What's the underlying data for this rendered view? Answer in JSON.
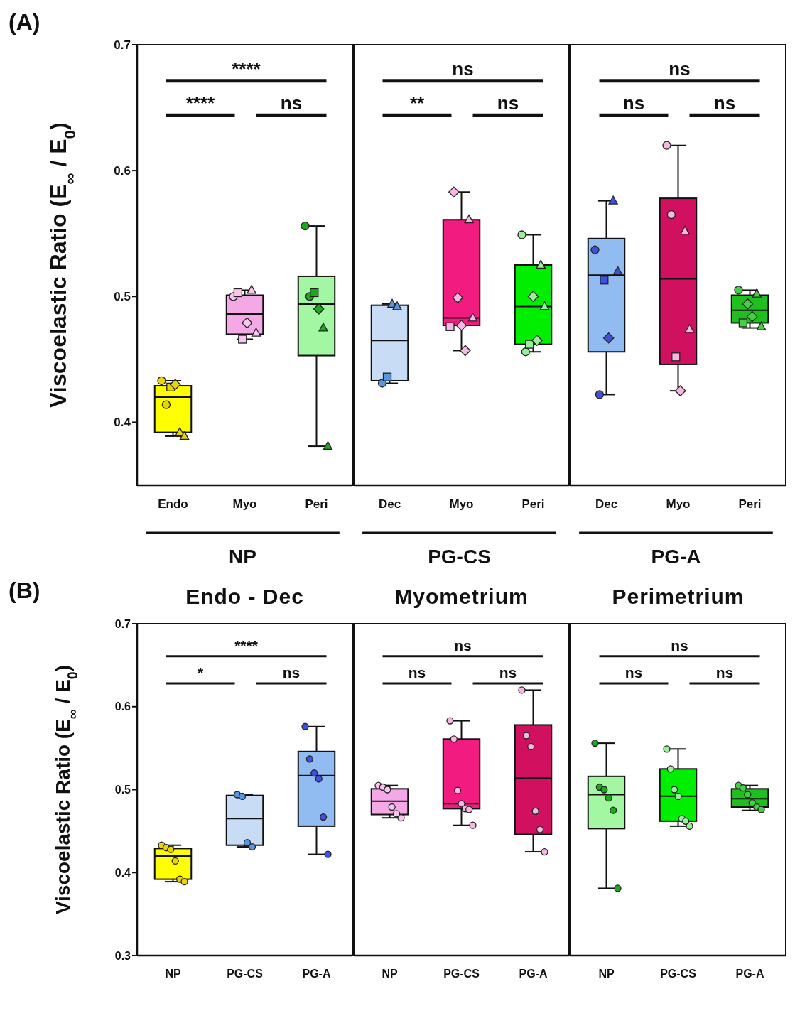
{
  "chart_data": [
    {
      "type": "box",
      "xlabel": "NP",
      "ylabel": "Viscoelastic Ratio (E$_{∞}$ / E$_{0}$)",
      "categories": [
        "Endo",
        "Myo",
        "Peri"
      ],
      "ylim": [
        0.35,
        0.7
      ],
      "yticks": [
        0.4,
        0.5,
        0.6,
        0.7
      ],
      "annotations": [
        "(A)",
        "****",
        "****",
        "ns"
      ],
      "series": [
        {
          "type": "box",
          "colors": [
            "#ffff00",
            "#f5a8e6",
            "#a3f7a3"
          ],
          "boxes": [
            {
              "low": 0.389,
              "q1": 0.392,
              "median": 0.42,
              "q3": 0.429,
              "high": 0.433
            },
            {
              "low": 0.466,
              "q1": 0.47,
              "median": 0.486,
              "q3": 0.501,
              "high": 0.505
            },
            {
              "low": 0.381,
              "q1": 0.453,
              "median": 0.494,
              "q3": 0.516,
              "high": 0.556
            }
          ]
        },
        {
          "type": "scatter",
          "marker": "circle",
          "x": [
            "Endo",
            "Endo",
            "Myo",
            "Peri",
            "Peri"
          ],
          "values": [
            0.433,
            0.414,
            0.5,
            0.556,
            0.5
          ],
          "colors": [
            "#e8d800",
            "#e8d800",
            "#f8c6ee",
            "#1fa81f",
            "#1fa81f"
          ]
        },
        {
          "type": "scatter",
          "marker": "square",
          "x": [
            "Endo",
            "Myo",
            "Myo",
            "Peri"
          ],
          "values": [
            0.428,
            0.503,
            0.466,
            0.503
          ],
          "colors": [
            "#e8d800",
            "#f8c6ee",
            "#f8c6ee",
            "#1fa81f"
          ]
        },
        {
          "type": "scatter",
          "marker": "diamond",
          "x": [
            "Endo",
            "Myo",
            "Peri"
          ],
          "values": [
            0.43,
            0.479,
            0.49
          ],
          "colors": [
            "#e8d800",
            "#f8c6ee",
            "#1fa81f"
          ]
        },
        {
          "type": "scatter",
          "marker": "triangle",
          "x": [
            "Endo",
            "Endo",
            "Myo",
            "Myo",
            "Peri",
            "Peri"
          ],
          "values": [
            0.392,
            0.389,
            0.505,
            0.471,
            0.475,
            0.381
          ],
          "colors": [
            "#e8d800",
            "#e8d800",
            "#f8c6ee",
            "#f8c6ee",
            "#1fa81f",
            "#1fa81f"
          ]
        }
      ]
    },
    {
      "type": "box",
      "xlabel": "PG-CS",
      "categories": [
        "Dec",
        "Myo",
        "Peri"
      ],
      "ylim": [
        0.35,
        0.7
      ],
      "yticks": [
        0.4,
        0.5,
        0.6,
        0.7
      ],
      "tick_labels": "x",
      "annotations": [
        "ns",
        "**",
        "ns"
      ],
      "series": [
        {
          "type": "box",
          "colors": [
            "#c8dcf5",
            "#f21b7f",
            "#00ee00"
          ],
          "boxes": [
            {
              "low": 0.431,
              "q1": 0.433,
              "median": 0.465,
              "q3": 0.493,
              "high": 0.494
            },
            {
              "low": 0.457,
              "q1": 0.477,
              "median": 0.483,
              "q3": 0.561,
              "high": 0.583
            },
            {
              "low": 0.456,
              "q1": 0.462,
              "median": 0.492,
              "q3": 0.525,
              "high": 0.549
            }
          ]
        },
        {
          "type": "scatter",
          "marker": "circle",
          "x": [
            "Dec",
            "Peri",
            "Peri"
          ],
          "values": [
            0.431,
            0.549,
            0.456
          ],
          "colors": [
            "#5a96e0",
            "#9aef9a",
            "#9aef9a"
          ]
        },
        {
          "type": "scatter",
          "marker": "square",
          "x": [
            "Dec",
            "Myo",
            "Peri"
          ],
          "values": [
            0.436,
            0.476,
            0.462
          ],
          "colors": [
            "#5a96e0",
            "#f5b8e4",
            "#9aef9a"
          ]
        },
        {
          "type": "scatter",
          "marker": "diamond",
          "x": [
            "Myo",
            "Myo",
            "Myo",
            "Myo",
            "Peri",
            "Peri"
          ],
          "values": [
            0.583,
            0.499,
            0.477,
            0.457,
            0.5,
            0.465
          ],
          "colors": [
            "#f5b8e4",
            "#f5b8e4",
            "#f5b8e4",
            "#f5b8e4",
            "#9aef9a",
            "#9aef9a"
          ]
        },
        {
          "type": "scatter",
          "marker": "triangle",
          "x": [
            "Dec",
            "Dec",
            "Myo",
            "Myo",
            "Peri",
            "Peri"
          ],
          "values": [
            0.494,
            0.492,
            0.561,
            0.483,
            0.525,
            0.492
          ],
          "colors": [
            "#5a96e0",
            "#5a96e0",
            "#f5b8e4",
            "#f5b8e4",
            "#9aef9a",
            "#9aef9a"
          ]
        }
      ]
    },
    {
      "type": "box",
      "xlabel": "PG-A",
      "categories": [
        "Dec",
        "Myo",
        "Peri"
      ],
      "ylim": [
        0.35,
        0.7
      ],
      "yticks": [
        0.4,
        0.5,
        0.6,
        0.7
      ],
      "tick_labels": "x",
      "annotations": [
        "ns",
        "ns",
        "ns"
      ],
      "series": [
        {
          "type": "box",
          "colors": [
            "#90bcf2",
            "#d1105f",
            "#1fbf1f"
          ],
          "boxes": [
            {
              "low": 0.422,
              "q1": 0.456,
              "median": 0.517,
              "q3": 0.546,
              "high": 0.576
            },
            {
              "low": 0.425,
              "q1": 0.446,
              "median": 0.514,
              "q3": 0.578,
              "high": 0.62
            },
            {
              "low": 0.475,
              "q1": 0.479,
              "median": 0.489,
              "q3": 0.501,
              "high": 0.505
            }
          ]
        },
        {
          "type": "scatter",
          "marker": "circle",
          "x": [
            "Dec",
            "Dec",
            "Myo",
            "Myo",
            "Peri"
          ],
          "values": [
            0.537,
            0.422,
            0.62,
            0.565,
            0.505
          ],
          "colors": [
            "#3f4fe0",
            "#3f4fe0",
            "#f5b8e4",
            "#f5b8e4",
            "#44d044"
          ]
        },
        {
          "type": "scatter",
          "marker": "square",
          "x": [
            "Dec",
            "Myo",
            "Peri"
          ],
          "values": [
            0.513,
            0.452,
            0.479
          ],
          "colors": [
            "#3f4fe0",
            "#f5b8e4",
            "#44d044"
          ]
        },
        {
          "type": "scatter",
          "marker": "diamond",
          "x": [
            "Dec",
            "Myo",
            "Peri",
            "Peri"
          ],
          "values": [
            0.467,
            0.425,
            0.494,
            0.484
          ],
          "colors": [
            "#3f4fe0",
            "#f5b8e4",
            "#44d044",
            "#44d044"
          ]
        },
        {
          "type": "scatter",
          "marker": "triangle",
          "x": [
            "Dec",
            "Dec",
            "Myo",
            "Myo",
            "Peri",
            "Peri"
          ],
          "values": [
            0.576,
            0.52,
            0.552,
            0.474,
            0.502,
            0.476
          ],
          "colors": [
            "#3f4fe0",
            "#3f4fe0",
            "#f5b8e4",
            "#f5b8e4",
            "#44d044",
            "#44d044"
          ]
        }
      ]
    },
    {
      "type": "box",
      "title": "Endo - Dec",
      "ylabel": "Viscoelastic Ratio (E$_{∞}$ / E$_{0}$)",
      "categories": [
        "NP",
        "PG-CS",
        "PG-A"
      ],
      "ylim": [
        0.3,
        0.7
      ],
      "yticks": [
        0.3,
        0.4,
        0.5,
        0.6,
        0.7
      ],
      "annotations": [
        "(B)",
        "****",
        "*",
        "ns"
      ],
      "series": [
        {
          "type": "box",
          "colors": [
            "#ffff00",
            "#c8dcf5",
            "#90bcf2"
          ],
          "boxes": [
            {
              "low": 0.389,
              "q1": 0.392,
              "median": 0.42,
              "q3": 0.429,
              "high": 0.433
            },
            {
              "low": 0.431,
              "q1": 0.433,
              "median": 0.465,
              "q3": 0.493,
              "high": 0.494
            },
            {
              "low": 0.422,
              "q1": 0.456,
              "median": 0.517,
              "q3": 0.546,
              "high": 0.576
            }
          ]
        },
        {
          "type": "scatter",
          "marker": "circle",
          "x": [
            "NP",
            "NP",
            "NP",
            "NP",
            "NP",
            "NP",
            "PG-CS",
            "PG-CS",
            "PG-CS",
            "PG-CS",
            "PG-A",
            "PG-A",
            "PG-A",
            "PG-A",
            "PG-A",
            "PG-A"
          ],
          "values": [
            0.433,
            0.43,
            0.428,
            0.414,
            0.392,
            0.389,
            0.494,
            0.492,
            0.436,
            0.431,
            0.576,
            0.537,
            0.52,
            0.513,
            0.467,
            0.422
          ],
          "colors": [
            "#e8d800",
            "#e8d800",
            "#e8d800",
            "#e8d800",
            "#e8d800",
            "#e8d800",
            "#5a96e0",
            "#5a96e0",
            "#5a96e0",
            "#5a96e0",
            "#3f4fe0",
            "#3f4fe0",
            "#3f4fe0",
            "#3f4fe0",
            "#3f4fe0",
            "#3f4fe0"
          ]
        }
      ]
    },
    {
      "type": "box",
      "title": "Myometrium",
      "categories": [
        "NP",
        "PG-CS",
        "PG-A"
      ],
      "ylim": [
        0.3,
        0.7
      ],
      "yticks": [
        0.3,
        0.4,
        0.5,
        0.6,
        0.7
      ],
      "tick_labels": "x",
      "annotations": [
        "ns",
        "ns",
        "ns"
      ],
      "series": [
        {
          "type": "box",
          "colors": [
            "#f5a8e6",
            "#f21b7f",
            "#d1105f"
          ],
          "boxes": [
            {
              "low": 0.466,
              "q1": 0.47,
              "median": 0.486,
              "q3": 0.501,
              "high": 0.505
            },
            {
              "low": 0.457,
              "q1": 0.477,
              "median": 0.483,
              "q3": 0.561,
              "high": 0.583
            },
            {
              "low": 0.425,
              "q1": 0.446,
              "median": 0.514,
              "q3": 0.578,
              "high": 0.62
            }
          ]
        },
        {
          "type": "scatter",
          "marker": "circle",
          "x": [
            "NP",
            "NP",
            "NP",
            "NP",
            "NP",
            "NP",
            "PG-CS",
            "PG-CS",
            "PG-CS",
            "PG-CS",
            "PG-CS",
            "PG-CS",
            "PG-CS",
            "PG-A",
            "PG-A",
            "PG-A",
            "PG-A",
            "PG-A",
            "PG-A"
          ],
          "values": [
            0.505,
            0.503,
            0.5,
            0.479,
            0.471,
            0.466,
            0.583,
            0.561,
            0.499,
            0.483,
            0.477,
            0.476,
            0.457,
            0.62,
            0.565,
            0.552,
            0.474,
            0.452,
            0.425
          ],
          "colors": [
            "#f8c6ee",
            "#f8c6ee",
            "#f8c6ee",
            "#f8c6ee",
            "#f8c6ee",
            "#f8c6ee",
            "#f5b8e4",
            "#f5b8e4",
            "#f5b8e4",
            "#f5b8e4",
            "#f5b8e4",
            "#f5b8e4",
            "#f5b8e4",
            "#f5b8e4",
            "#f5b8e4",
            "#f5b8e4",
            "#f5b8e4",
            "#f5b8e4",
            "#f5b8e4"
          ]
        }
      ]
    },
    {
      "type": "box",
      "title": "Perimetrium",
      "categories": [
        "NP",
        "PG-CS",
        "PG-A"
      ],
      "ylim": [
        0.3,
        0.7
      ],
      "yticks": [
        0.3,
        0.4,
        0.5,
        0.6,
        0.7
      ],
      "tick_labels": "x",
      "annotations": [
        "ns",
        "ns",
        "ns"
      ],
      "series": [
        {
          "type": "box",
          "colors": [
            "#a3f7a3",
            "#00ee00",
            "#1fbf1f"
          ],
          "boxes": [
            {
              "low": 0.381,
              "q1": 0.453,
              "median": 0.494,
              "q3": 0.516,
              "high": 0.556
            },
            {
              "low": 0.456,
              "q1": 0.462,
              "median": 0.492,
              "q3": 0.525,
              "high": 0.549
            },
            {
              "low": 0.475,
              "q1": 0.479,
              "median": 0.489,
              "q3": 0.501,
              "high": 0.505
            }
          ]
        },
        {
          "type": "scatter",
          "marker": "circle",
          "x": [
            "NP",
            "NP",
            "NP",
            "NP",
            "NP",
            "NP",
            "PG-CS",
            "PG-CS",
            "PG-CS",
            "PG-CS",
            "PG-CS",
            "PG-CS",
            "PG-CS",
            "PG-A",
            "PG-A",
            "PG-A",
            "PG-A",
            "PG-A",
            "PG-A"
          ],
          "values": [
            0.556,
            0.503,
            0.5,
            0.49,
            0.475,
            0.381,
            0.549,
            0.525,
            0.5,
            0.492,
            0.465,
            0.462,
            0.456,
            0.505,
            0.502,
            0.494,
            0.484,
            0.479,
            0.476
          ],
          "colors": [
            "#1fa81f",
            "#1fa81f",
            "#1fa81f",
            "#1fa81f",
            "#1fa81f",
            "#1fa81f",
            "#9aef9a",
            "#9aef9a",
            "#9aef9a",
            "#9aef9a",
            "#9aef9a",
            "#9aef9a",
            "#9aef9a",
            "#44d044",
            "#44d044",
            "#44d044",
            "#44d044",
            "#44d044",
            "#44d044"
          ]
        }
      ]
    }
  ]
}
